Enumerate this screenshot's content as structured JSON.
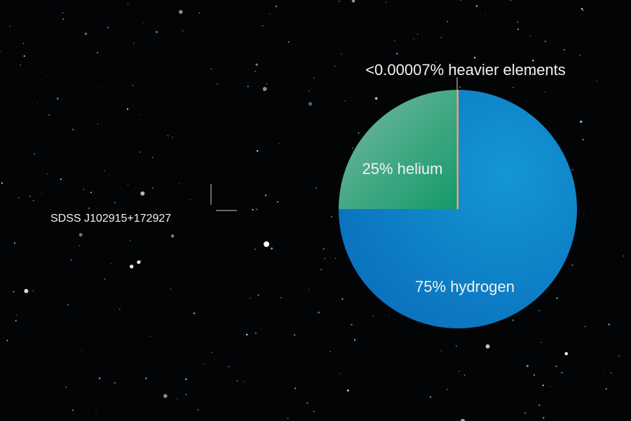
{
  "chart_data": {
    "type": "pie",
    "title": "",
    "slices": [
      {
        "label": "75% hydrogen",
        "value": 75,
        "color": "#0a7fc4"
      },
      {
        "label": "25% helium",
        "value": 25,
        "color": "#2f9a7a"
      },
      {
        "label": "<0.00007% heavier elements",
        "value": 7e-05,
        "color": "#f0a070"
      }
    ],
    "legend": "none"
  },
  "annotation": {
    "object_label": "SDSS J102915+172927"
  },
  "colors": {
    "background": "#030405",
    "label_text": "#f2f2f2"
  }
}
